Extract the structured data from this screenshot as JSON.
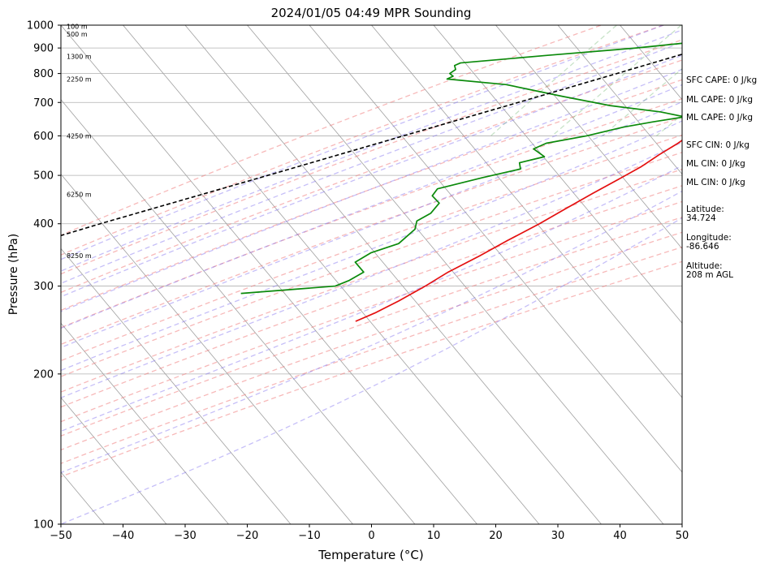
{
  "chart_data": {
    "type": "line",
    "title": "2024/01/05 04:49 MPR Sounding",
    "xlabel": "Temperature (°C)",
    "ylabel": "Pressure (hPa)",
    "xlim": [
      -50,
      50
    ],
    "ylim": [
      1000,
      100
    ],
    "y_scale": "log",
    "skew": true,
    "grid": true,
    "x_ticks": [
      -50,
      -40,
      -30,
      -20,
      -10,
      0,
      10,
      20,
      30,
      40,
      50
    ],
    "y_ticks": [
      100,
      200,
      300,
      400,
      500,
      600,
      700,
      800,
      900,
      1000
    ],
    "x_tick_labels": [
      "−50",
      "−40",
      "−30",
      "−20",
      "−10",
      "0",
      "10",
      "20",
      "30",
      "40",
      "50"
    ],
    "y_tick_labels": [
      "100",
      "200",
      "300",
      "400",
      "500",
      "600",
      "700",
      "800",
      "900",
      "1000"
    ],
    "series": [
      {
        "role": "temperature",
        "color": "#e41010",
        "points": [
          {
            "p": 1000,
            "t": -1.0
          },
          {
            "p": 985,
            "t": 2.3
          },
          {
            "p": 960,
            "t": 3.6
          },
          {
            "p": 930,
            "t": 4.3
          },
          {
            "p": 900,
            "t": 5.3
          },
          {
            "p": 870,
            "t": 6.8
          },
          {
            "p": 840,
            "t": 7.2
          },
          {
            "p": 810,
            "t": 7.5
          },
          {
            "p": 785,
            "t": 7.8
          },
          {
            "p": 760,
            "t": 7.2
          },
          {
            "p": 730,
            "t": 5.3
          },
          {
            "p": 700,
            "t": 3.8
          },
          {
            "p": 670,
            "t": 2.2
          },
          {
            "p": 640,
            "t": 0.8
          },
          {
            "p": 610,
            "t": -0.8
          },
          {
            "p": 580,
            "t": -1.8
          },
          {
            "p": 550,
            "t": -3.3
          },
          {
            "p": 520,
            "t": -4.6
          },
          {
            "p": 490,
            "t": -6.6
          },
          {
            "p": 460,
            "t": -8.8
          },
          {
            "p": 430,
            "t": -11.0
          },
          {
            "p": 400,
            "t": -13.3
          },
          {
            "p": 370,
            "t": -16.2
          },
          {
            "p": 345,
            "t": -18.6
          },
          {
            "p": 320,
            "t": -21.5
          },
          {
            "p": 300,
            "t": -23.3
          },
          {
            "p": 280,
            "t": -25.6
          },
          {
            "p": 265,
            "t": -27.8
          },
          {
            "p": 255,
            "t": -29.8
          }
        ]
      },
      {
        "role": "dewpoint",
        "color": "#0b8a0b",
        "points": [
          {
            "p": 1000,
            "t": -5.0
          },
          {
            "p": 985,
            "t": -5.4
          },
          {
            "p": 960,
            "t": -6.7
          },
          {
            "p": 940,
            "t": -10.3
          },
          {
            "p": 925,
            "t": -12.8
          },
          {
            "p": 900,
            "t": -21.3
          },
          {
            "p": 870,
            "t": -34.6
          },
          {
            "p": 840,
            "t": -47.6
          },
          {
            "p": 830,
            "t": -48.2
          },
          {
            "p": 815,
            "t": -47.5
          },
          {
            "p": 800,
            "t": -47.9
          },
          {
            "p": 790,
            "t": -47.0
          },
          {
            "p": 780,
            "t": -47.6
          },
          {
            "p": 760,
            "t": -37.3
          },
          {
            "p": 720,
            "t": -26.7
          },
          {
            "p": 690,
            "t": -17.8
          },
          {
            "p": 670,
            "t": -8.8
          },
          {
            "p": 655,
            "t": -4.3
          },
          {
            "p": 640,
            "t": -8.7
          },
          {
            "p": 625,
            "t": -12.7
          },
          {
            "p": 600,
            "t": -17.5
          },
          {
            "p": 580,
            "t": -23.0
          },
          {
            "p": 565,
            "t": -24.3
          },
          {
            "p": 545,
            "t": -21.5
          },
          {
            "p": 530,
            "t": -24.7
          },
          {
            "p": 515,
            "t": -23.7
          },
          {
            "p": 495,
            "t": -28.6
          },
          {
            "p": 470,
            "t": -34.4
          },
          {
            "p": 455,
            "t": -34.3
          },
          {
            "p": 440,
            "t": -32.2
          },
          {
            "p": 420,
            "t": -32.2
          },
          {
            "p": 405,
            "t": -33.4
          },
          {
            "p": 390,
            "t": -32.6
          },
          {
            "p": 365,
            "t": -33.3
          },
          {
            "p": 350,
            "t": -36.5
          },
          {
            "p": 335,
            "t": -37.8
          },
          {
            "p": 320,
            "t": -35.1
          },
          {
            "p": 308,
            "t": -36.3
          },
          {
            "p": 300,
            "t": -37.8
          },
          {
            "p": 290,
            "t": -52.0
          }
        ]
      },
      {
        "role": "parcel",
        "color": "#000000",
        "dashed": true,
        "points": [
          {
            "p": 1000,
            "t": -1.0
          },
          {
            "p": 970,
            "t": -3.7
          },
          {
            "p": 900,
            "t": -10.5
          },
          {
            "p": 800,
            "t": -21.0
          },
          {
            "p": 700,
            "t": -33.0
          },
          {
            "p": 600,
            "t": -47.0
          },
          {
            "p": 500,
            "t": -63.5
          },
          {
            "p": 400,
            "t": -84.0
          },
          {
            "p": 307,
            "t": -107.0
          }
        ]
      }
    ],
    "altitude_labels": [
      {
        "p": 995,
        "label": "100 m"
      },
      {
        "p": 960,
        "label": "500 m"
      },
      {
        "p": 865,
        "label": "1300 m"
      },
      {
        "p": 780,
        "label": "2250 m"
      },
      {
        "p": 600,
        "label": "4250 m"
      },
      {
        "p": 458,
        "label": "6250 m"
      },
      {
        "p": 345,
        "label": "8250 m"
      }
    ],
    "annotations": [
      [
        "SFC CAPE: 0 J/kg"
      ],
      [
        "ML CAPE: 0 J/kg"
      ],
      [
        "ML CAPE: 0 J/kg"
      ],
      [
        "SFC CIN: 0 J/kg"
      ],
      [
        "ML CIN: 0 J/kg"
      ],
      [
        "ML CIN: 0 J/kg"
      ],
      [
        "Latitude:",
        "34.724"
      ],
      [
        "Longitude:",
        "-86.646"
      ],
      [
        "Altitude:",
        "208 m AGL"
      ]
    ],
    "background_lines": {
      "isotherm_color": "#a0a0a0",
      "dry_adiabat_color": "#f08080",
      "moist_adiabat_color": "#8070f0",
      "mixing_ratio_color": "#60b060",
      "dry_adiabat_thetas_K": [
        -30,
        -20,
        -10,
        0,
        10,
        20,
        30,
        40,
        50,
        60,
        70,
        80,
        90,
        100,
        110,
        120
      ],
      "moist_adiabat_start_C": [
        -20,
        -15,
        -10,
        -5,
        0,
        5,
        10,
        15,
        20,
        25,
        30,
        35
      ],
      "mixing_ratios_gkg": [
        0.4,
        1,
        2,
        4,
        7,
        10,
        16,
        24,
        32
      ]
    }
  }
}
